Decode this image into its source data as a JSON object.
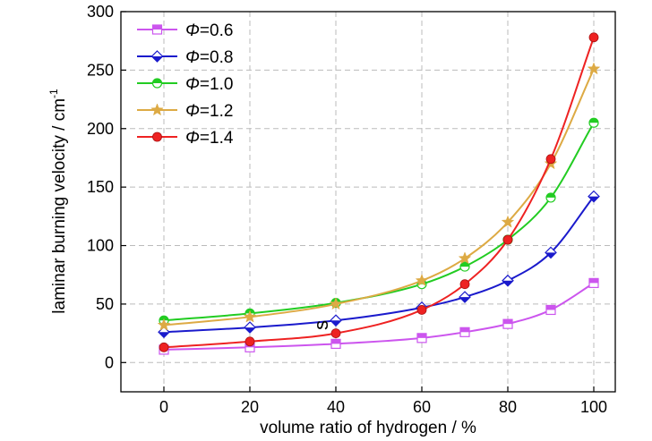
{
  "chart_data": {
    "type": "line",
    "xlabel": "volume ratio of hydrogen / %",
    "ylabel": "laminar burning velocity / cm",
    "ylabel_sup": "-1",
    "ylabel_suffix": "s",
    "xlim": [
      -10,
      105
    ],
    "ylim": [
      -25,
      300
    ],
    "x_ticks": [
      0,
      20,
      40,
      60,
      80,
      100
    ],
    "y_ticks": [
      0,
      50,
      100,
      150,
      200,
      250,
      300
    ],
    "grid": true,
    "legend_position": "top-left",
    "x": [
      0,
      20,
      40,
      60,
      70,
      80,
      90,
      100
    ],
    "series": [
      {
        "name_symbol": "Φ",
        "name_value": "=0.6",
        "color": "#cc55ee",
        "marker": "square",
        "values": [
          11,
          13,
          16,
          21,
          26,
          33,
          45,
          68
        ]
      },
      {
        "name_symbol": "Φ",
        "name_value": "=0.8",
        "color": "#1a1acc",
        "marker": "diamond",
        "values": [
          26,
          30,
          36,
          47,
          56,
          70,
          94,
          142
        ]
      },
      {
        "name_symbol": "Φ",
        "name_value": "=1.0",
        "color": "#22cc22",
        "marker": "circle-half",
        "values": [
          36,
          42,
          51,
          67,
          82,
          105,
          141,
          205
        ]
      },
      {
        "name_symbol": "Φ",
        "name_value": "=1.2",
        "color": "#ddaa44",
        "marker": "star",
        "values": [
          32,
          39,
          50,
          70,
          89,
          120,
          170,
          251
        ]
      },
      {
        "name_symbol": "Φ",
        "name_value": "=1.4",
        "color": "#ee2222",
        "marker": "circle",
        "values": [
          13,
          18,
          25,
          45,
          67,
          105,
          174,
          278
        ]
      }
    ]
  }
}
